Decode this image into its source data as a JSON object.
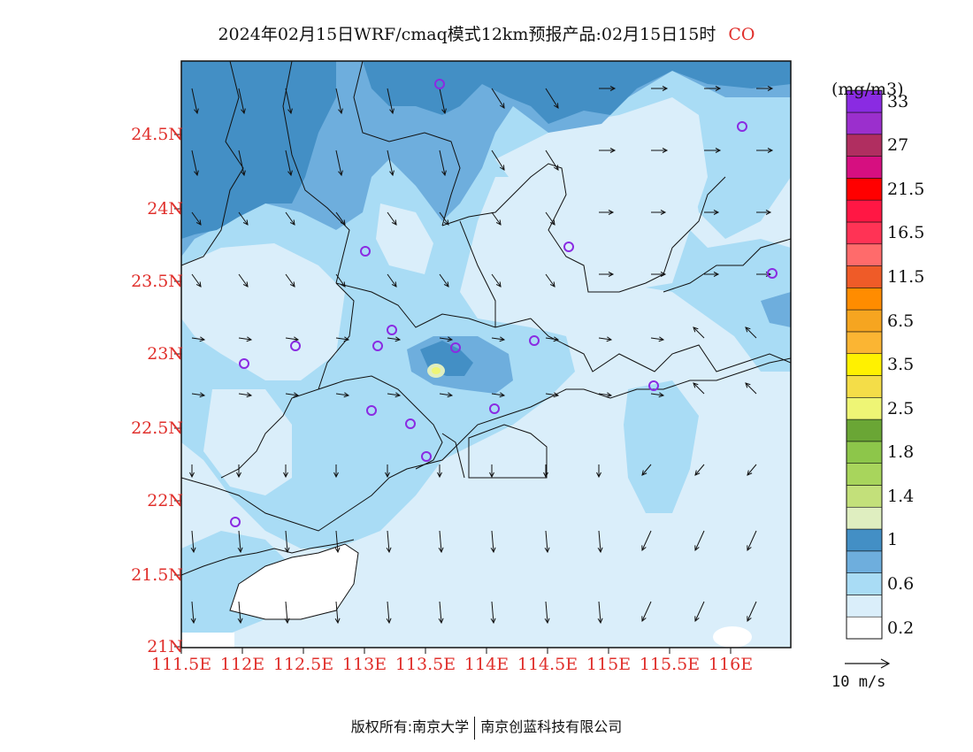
{
  "title": {
    "text": "2024年02月15日WRF/cmaq模式12km预报产品:02月15日15时",
    "pollutant": "CO",
    "pollutant_color": "#e0302c"
  },
  "map": {
    "lat_labels": [
      "24.5N",
      "24N",
      "23.5N",
      "23N",
      "22.5N",
      "22N",
      "21.5N",
      "21N"
    ],
    "lon_labels": [
      "111.5E",
      "112E",
      "112.5E",
      "113E",
      "113.5E",
      "114E",
      "114.5E",
      "115E",
      "115.5E",
      "116E"
    ],
    "station_marker_color": "#8a2be2"
  },
  "colorbar": {
    "unit": "(mg/m3)",
    "colors": [
      "#ffffff",
      "#daeefa",
      "#a9dcf5",
      "#6eaedd",
      "#438fc5",
      "#dfeec0",
      "#c3e07a",
      "#a8d55c",
      "#8dc64a",
      "#6aa635",
      "#eef575",
      "#f4dd48",
      "#fff100",
      "#fbb533",
      "#f6a520",
      "#ff8c00",
      "#ef5b28",
      "#ff6b6b",
      "#ff3355",
      "#ff1744",
      "#ff0000",
      "#d60f80",
      "#b02e60",
      "#9b2fcd",
      "#8a2be2"
    ],
    "labels": [
      {
        "text": "0.2",
        "slot": 1
      },
      {
        "text": "0.6",
        "slot": 3
      },
      {
        "text": "1",
        "slot": 5
      },
      {
        "text": "1.4",
        "slot": 7
      },
      {
        "text": "1.8",
        "slot": 9
      },
      {
        "text": "2.5",
        "slot": 11
      },
      {
        "text": "3.5",
        "slot": 13
      },
      {
        "text": "6.5",
        "slot": 15
      },
      {
        "text": "11.5",
        "slot": 17
      },
      {
        "text": "16.5",
        "slot": 19
      },
      {
        "text": "21.5",
        "slot": 21
      },
      {
        "text": "27",
        "slot": 23
      },
      {
        "text": "33",
        "slot": 25
      }
    ],
    "reference_vector": "10 m/s"
  },
  "footer": {
    "left": "版权所有:南京大学",
    "right": "南京创蓝科技有限公司"
  }
}
